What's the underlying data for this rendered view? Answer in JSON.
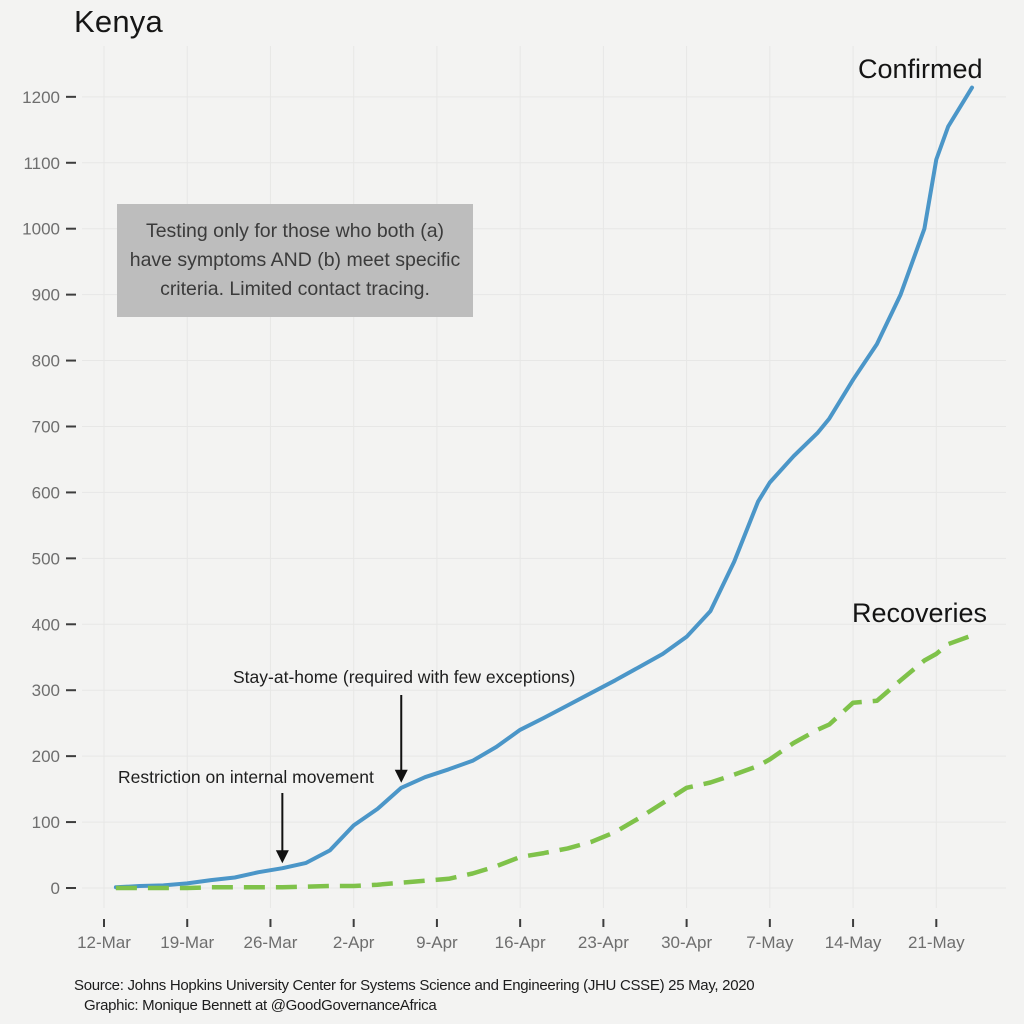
{
  "chart_data": {
    "type": "line",
    "title": "Kenya",
    "grid": true,
    "legend_position": "inline-labels-right",
    "x_axis": {
      "tick_labels": [
        "12-Mar",
        "19-Mar",
        "26-Mar",
        "2-Apr",
        "9-Apr",
        "16-Apr",
        "23-Apr",
        "30-Apr",
        "7-May",
        "14-May",
        "21-May"
      ],
      "tick_days": [
        0,
        7,
        14,
        21,
        28,
        35,
        42,
        49,
        56,
        63,
        70
      ],
      "start_date": "12-Mar",
      "end_date": "24-May"
    },
    "y_axis": {
      "ticks": [
        0,
        100,
        200,
        300,
        400,
        500,
        600,
        700,
        800,
        900,
        1000,
        1100,
        1200
      ],
      "range": [
        0,
        1200
      ]
    },
    "series": [
      {
        "name": "Confirmed",
        "color": "#4b96c8",
        "style": "solid",
        "width": 4,
        "dash": null,
        "days": [
          1,
          3,
          5,
          7,
          9,
          11,
          13,
          15,
          17,
          19,
          21,
          23,
          25,
          27,
          29,
          31,
          33,
          35,
          37,
          39,
          41,
          43,
          45,
          47,
          49,
          51,
          53,
          55,
          56,
          58,
          60,
          61,
          63,
          65,
          67,
          69,
          70,
          71,
          73
        ],
        "values": [
          1,
          3,
          4,
          7,
          12,
          16,
          24,
          30,
          38,
          57,
          95,
          120,
          152,
          168,
          180,
          193,
          214,
          240,
          258,
          277,
          296,
          315,
          335,
          355,
          381,
          420,
          495,
          586,
          615,
          655,
          690,
          712,
          771,
          825,
          900,
          1000,
          1105,
          1155,
          1214
        ]
      },
      {
        "name": "Recoveries",
        "color": "#7fc24a",
        "style": "dashed",
        "width": 4.5,
        "dash": "21 11",
        "days": [
          1,
          3,
          5,
          7,
          9,
          11,
          13,
          15,
          17,
          19,
          21,
          23,
          25,
          27,
          29,
          31,
          33,
          35,
          37,
          39,
          41,
          43,
          45,
          47,
          49,
          51,
          53,
          55,
          56,
          58,
          60,
          61,
          63,
          65,
          67,
          69,
          70,
          71,
          73
        ],
        "values": [
          0,
          0,
          0,
          0,
          1,
          1,
          1,
          1,
          2,
          3,
          3,
          5,
          8,
          11,
          14,
          22,
          33,
          47,
          53,
          60,
          70,
          85,
          106,
          129,
          152,
          160,
          172,
          185,
          195,
          220,
          240,
          248,
          281,
          284,
          315,
          345,
          355,
          370,
          383
        ]
      }
    ],
    "annotations": [
      {
        "label": "Restriction on internal movement",
        "day": 15,
        "value": 30,
        "arrow_from_y": 793
      },
      {
        "label": "Stay-at-home (required with few exceptions)",
        "day": 25,
        "value": 152,
        "arrow_from_y": 695
      }
    ],
    "note_box": {
      "lines": [
        "Testing only for those who both (a)",
        "have symptoms AND (b) meet specific",
        "criteria. Limited contact tracing."
      ]
    },
    "colors": {
      "background": "#f3f3f2",
      "grid": "#e7e7e6",
      "tick": "#3d3d3d",
      "axis_text": "#6e6e6e",
      "annotation": "#111111",
      "note_box_bg": "#bdbdbd",
      "note_box_text": "#3b3b3b",
      "title_text": "#161616"
    }
  },
  "footer": {
    "source": "Source: Johns Hopkins University Center for Systems Science and Engineering (JHU CSSE) 25 May, 2020",
    "credit": "Graphic: Monique Bennett at @GoodGovernanceAfrica"
  }
}
